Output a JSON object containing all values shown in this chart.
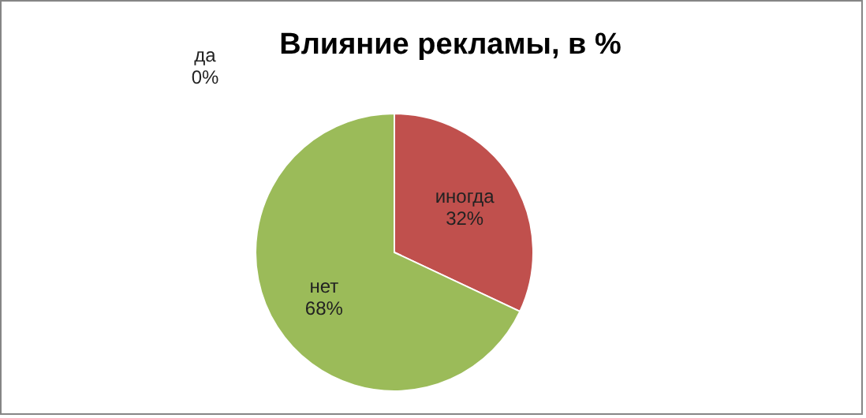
{
  "chart_data": {
    "type": "pie",
    "title": "Влияние рекламы, в %",
    "categories": [
      "да",
      "иногда",
      "нет"
    ],
    "values": [
      0,
      32,
      68
    ],
    "colors": [
      "#4f81bd",
      "#c0504d",
      "#9bbb59"
    ],
    "value_labels": [
      "0%",
      "32%",
      "68%"
    ]
  }
}
